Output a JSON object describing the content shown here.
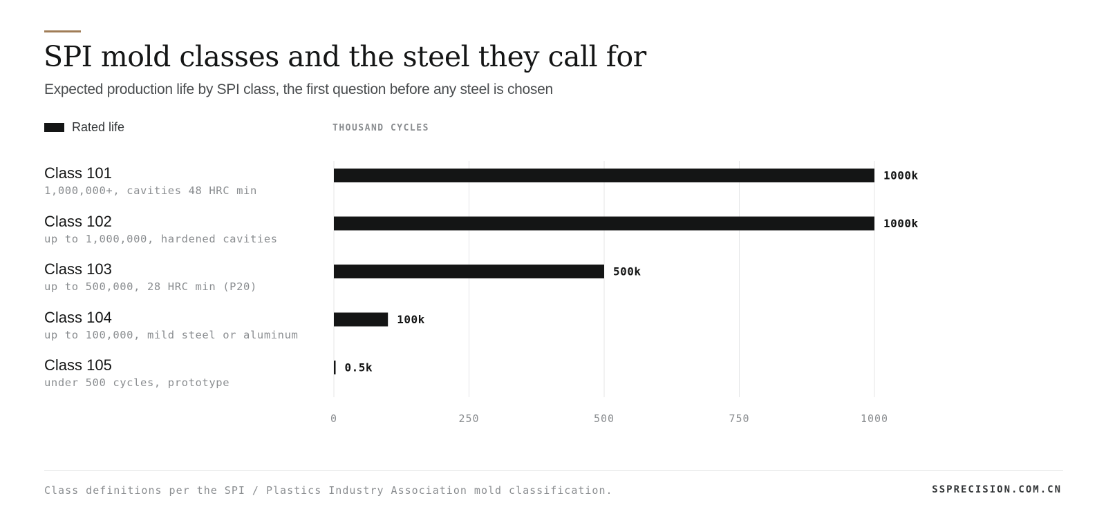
{
  "header": {
    "title": "SPI mold classes and the steel they call for",
    "subtitle": "Expected production life by SPI class, the first question before any steel is chosen"
  },
  "colors": {
    "accent": "#a07d57",
    "bar": "#141515",
    "grid": "#e4e5e6",
    "muted_text": "#8a8d90"
  },
  "chart_data": {
    "type": "bar",
    "orientation": "horizontal",
    "units_label": "THOUSAND CYCLES",
    "legend": {
      "label": "Rated life",
      "position": "top-left"
    },
    "categories": [
      {
        "name": "Class 101",
        "description": "1,000,000+, cavities 48 HRC min"
      },
      {
        "name": "Class 102",
        "description": "up to 1,000,000, hardened cavities"
      },
      {
        "name": "Class 103",
        "description": "up to 500,000, 28 HRC min (P20)"
      },
      {
        "name": "Class 104",
        "description": "up to 100,000, mild steel or aluminum"
      },
      {
        "name": "Class 105",
        "description": "under 500 cycles, prototype"
      }
    ],
    "series": [
      {
        "name": "Rated life",
        "values": [
          1000,
          1000,
          500,
          100,
          0.5
        ]
      }
    ],
    "value_labels": [
      "1000k",
      "1000k",
      "500k",
      "100k",
      "0.5k"
    ],
    "xlim": [
      0,
      1000
    ],
    "xticks": [
      0,
      250,
      500,
      750,
      1000
    ],
    "xtick_labels": [
      "0",
      "250",
      "500",
      "750",
      "1000"
    ],
    "grid": true
  },
  "footer": {
    "note": "Class definitions per the SPI / Plastics Industry Association mold classification.",
    "brand": "SSPRECISION.COM.CN"
  }
}
